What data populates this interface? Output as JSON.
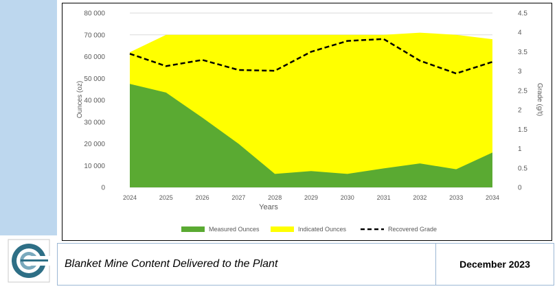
{
  "footer": {
    "title": "Blanket Mine Content Delivered to the Plant",
    "date": "December 2023"
  },
  "colors": {
    "measured": "#5aaa32",
    "indicated": "#ffff00",
    "grade_line": "#000000",
    "band": "#bdd7ee"
  },
  "chart_data": {
    "type": "area",
    "xlabel": "Years",
    "ylabel": "Ounces (oz)",
    "y2label": "Grade (g/t)",
    "categories": [
      "2024",
      "2025",
      "2026",
      "2027",
      "2028",
      "2029",
      "2030",
      "2031",
      "2032",
      "2033",
      "2034"
    ],
    "ylim": [
      0,
      80000
    ],
    "y_ticks": [
      0,
      10000,
      20000,
      30000,
      40000,
      50000,
      60000,
      70000,
      80000
    ],
    "y_tick_labels": [
      "0",
      "10 000",
      "20 000",
      "30 000",
      "40 000",
      "50 000",
      "60 000",
      "70 000",
      "80 000"
    ],
    "y2lim": [
      0,
      4.5
    ],
    "y2_ticks": [
      0,
      0.5,
      1,
      1.5,
      2,
      2.5,
      3,
      3.5,
      4,
      4.5
    ],
    "y2_tick_labels": [
      "0",
      "0.5",
      "1",
      "1.5",
      "2",
      "2.5",
      "3",
      "3.5",
      "4",
      "4.5"
    ],
    "series": [
      {
        "name": "Measured Ounces",
        "kind": "area",
        "axis": "left",
        "values": [
          47500,
          43500,
          32000,
          20000,
          6200,
          7500,
          6200,
          8700,
          11000,
          8300,
          16000
        ]
      },
      {
        "name": "Indicated Ounces",
        "kind": "area-total",
        "axis": "left",
        "values": [
          62000,
          70000,
          70000,
          70000,
          70000,
          70000,
          70000,
          70000,
          71000,
          70000,
          68000
        ]
      },
      {
        "name": "Recovered Grade",
        "kind": "line-dashed",
        "axis": "right",
        "values": [
          3.45,
          3.13,
          3.29,
          3.03,
          3.01,
          3.5,
          3.78,
          3.83,
          3.27,
          2.94,
          3.24
        ]
      }
    ],
    "legend": [
      "Measured Ounces",
      "Indicated Ounces",
      "Recovered Grade"
    ],
    "legend_position": "bottom"
  }
}
